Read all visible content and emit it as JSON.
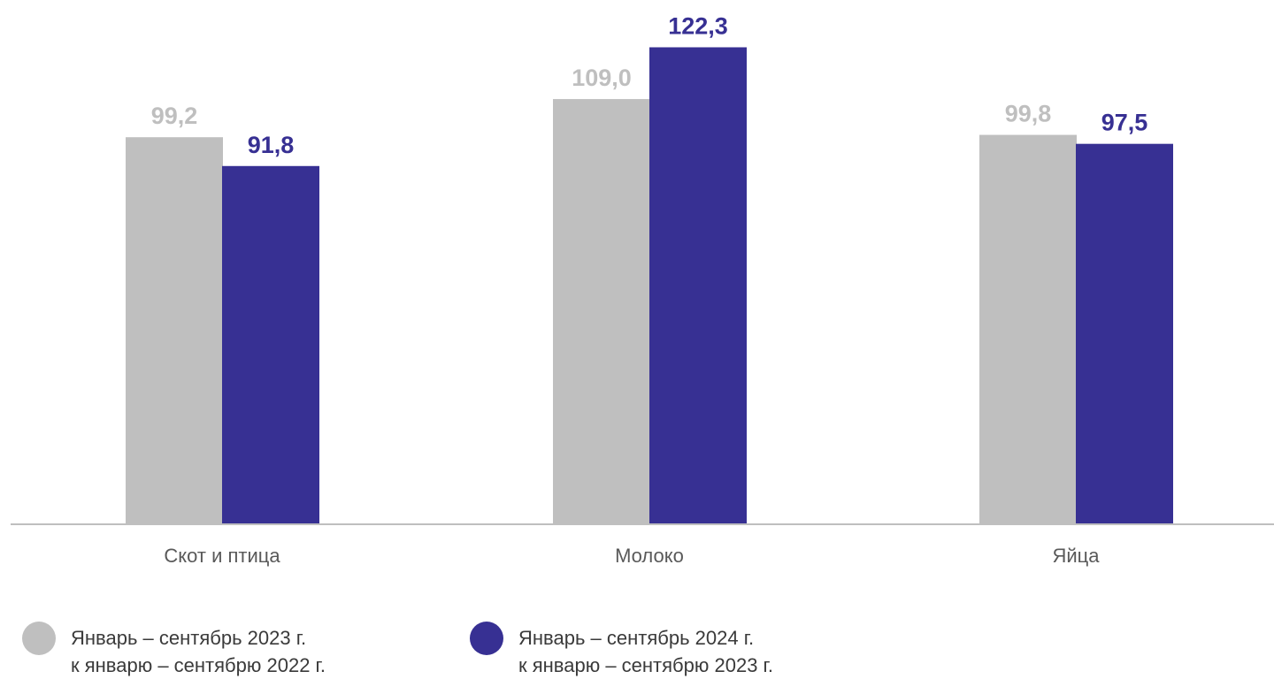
{
  "chart_data": {
    "type": "bar",
    "categories": [
      "Скот и птица",
      "Молоко",
      "Яйца"
    ],
    "series": [
      {
        "name": "Январь –  сентябрь 2023 г. к январю – сентябрю 2022 г.",
        "legend_lines": [
          "Январь –  сентябрь 2023 г.",
          "к январю – сентябрю 2022 г."
        ],
        "values": [
          99.2,
          109.0,
          99.8
        ],
        "labels": [
          "99,2",
          "109,0",
          "99,8"
        ],
        "color": "#bfbfbf"
      },
      {
        "name": "Январь – сентябрь 2024 г. к  январю – сентябрю 2023 г.",
        "legend_lines": [
          "Январь – сентябрь 2024 г.",
          "к  январю – сентябрю 2023 г."
        ],
        "values": [
          91.8,
          122.3,
          97.5
        ],
        "labels": [
          "91,8",
          "122,3",
          "97,5"
        ],
        "color": "#373093"
      }
    ],
    "ylim": [
      0,
      124
    ],
    "grid": false,
    "legend_position": "bottom-left",
    "axis_color": "#bfbfbf",
    "tick_label_color": "#595959"
  }
}
